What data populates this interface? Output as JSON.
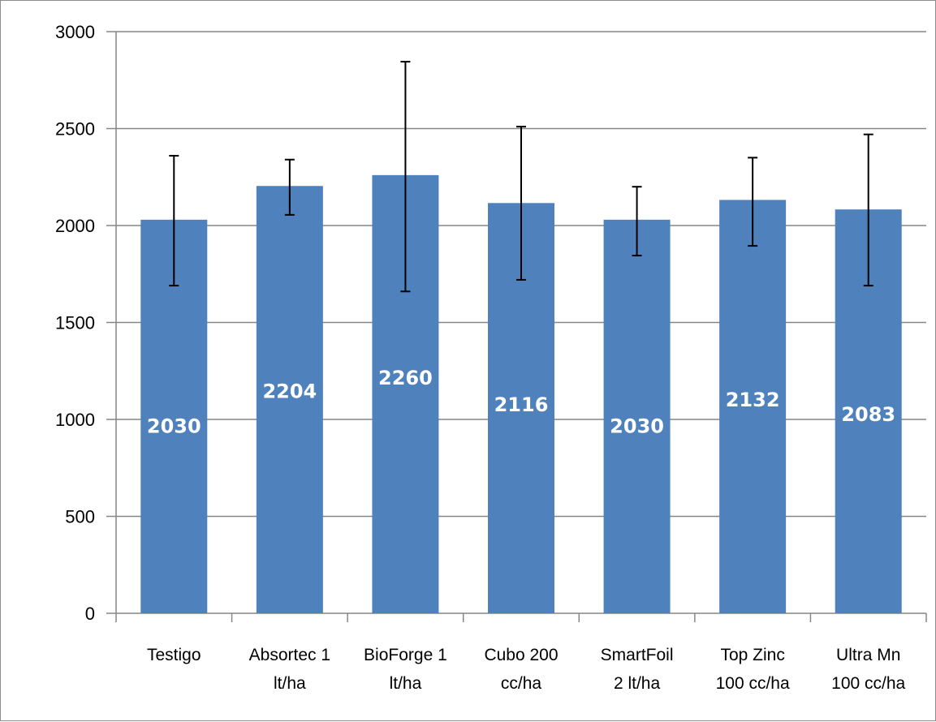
{
  "chart_data": {
    "type": "bar",
    "categories": [
      [
        "Testigo"
      ],
      [
        "Absortec 1",
        "lt/ha"
      ],
      [
        "BioForge 1",
        "lt/ha"
      ],
      [
        "Cubo 200",
        "cc/ha"
      ],
      [
        "SmartFoil",
        "2 lt/ha"
      ],
      [
        "Top Zinc",
        "100 cc/ha"
      ],
      [
        "Ultra Mn",
        "100 cc/ha"
      ]
    ],
    "values": [
      2030,
      2204,
      2260,
      2116,
      2030,
      2132,
      2083
    ],
    "data_labels": [
      "2030",
      "2204",
      "2260",
      "2116",
      "2030",
      "2132",
      "2083"
    ],
    "error_bars": [
      [
        1690,
        2360
      ],
      [
        2055,
        2340
      ],
      [
        1660,
        2845
      ],
      [
        1720,
        2510
      ],
      [
        1845,
        2200
      ],
      [
        1895,
        2350
      ],
      [
        1690,
        2470
      ]
    ],
    "ylim": [
      0,
      3000
    ],
    "yticks": [
      0,
      500,
      1000,
      1500,
      2000,
      2500,
      3000
    ],
    "ytick_labels": [
      "0",
      "500",
      "1000",
      "1500",
      "2000",
      "2500",
      "3000"
    ],
    "grid": true,
    "legend": "none",
    "title": "",
    "xlabel": "",
    "ylabel": "",
    "colors": {
      "bar": "#4f81bd",
      "grid": "#868686",
      "axis": "#868686",
      "error": "#000000",
      "data_label": "#ffffff"
    }
  }
}
